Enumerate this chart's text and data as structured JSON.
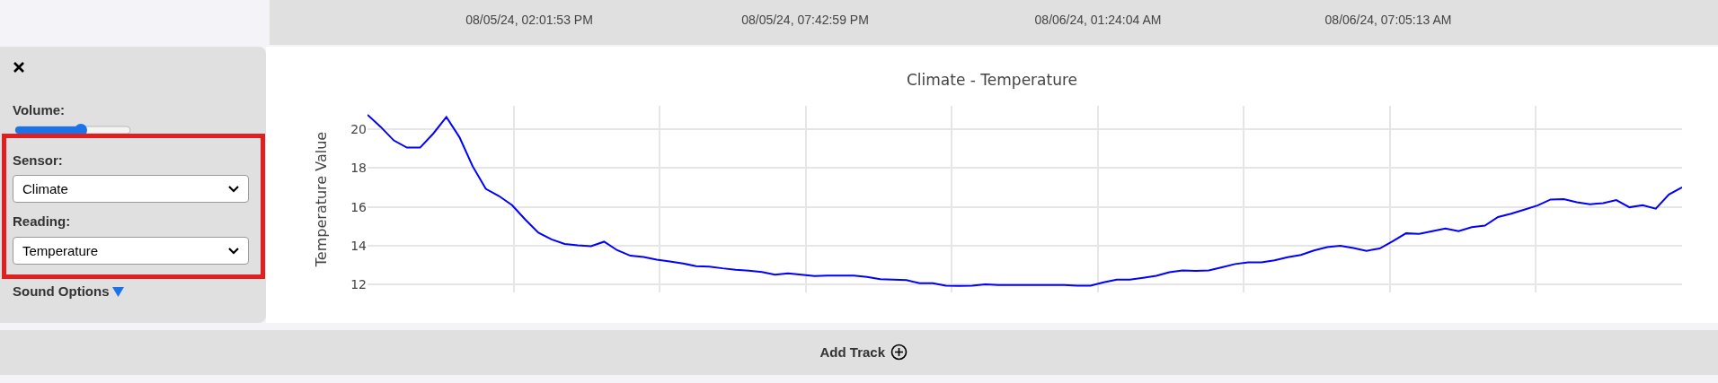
{
  "chart_data": {
    "type": "line",
    "title": "Climate - Temperature",
    "ylabel": "Temperature Value",
    "categories": [
      null,
      null,
      null,
      null,
      null,
      null,
      null,
      null,
      null,
      null,
      null,
      null,
      null,
      null,
      null,
      null,
      null,
      null,
      null,
      null,
      null,
      null,
      null,
      null,
      null,
      null,
      null,
      null,
      null,
      null,
      null,
      null,
      null,
      null,
      null,
      null,
      null,
      null,
      null,
      null,
      null,
      null,
      null,
      null,
      null,
      null,
      null,
      null,
      null,
      null,
      null,
      null,
      null,
      null,
      null,
      null,
      null,
      null,
      null,
      null,
      null,
      null,
      null,
      null,
      null,
      null,
      null,
      null,
      null,
      null,
      null,
      null,
      null,
      null,
      null,
      null,
      null,
      null,
      null,
      null,
      null,
      null,
      null,
      null,
      null,
      null,
      null,
      null,
      null,
      null,
      null,
      null,
      null,
      null,
      null,
      null,
      null,
      null,
      null,
      null,
      null
    ],
    "series": [
      {
        "color": "#0000ff",
        "values": [
          20.74,
          20.12,
          19.42,
          19.05,
          19.05,
          19.77,
          20.63,
          19.58,
          18.09,
          16.93,
          16.56,
          16.09,
          15.35,
          14.67,
          14.33,
          14.09,
          14.02,
          13.98,
          14.21,
          13.77,
          13.49,
          13.42,
          13.28,
          13.19,
          13.09,
          12.95,
          12.93,
          12.84,
          12.77,
          12.72,
          12.65,
          12.51,
          12.58,
          12.51,
          12.44,
          12.47,
          12.47,
          12.47,
          12.4,
          12.28,
          12.26,
          12.23,
          12.07,
          12.07,
          11.95,
          11.93,
          11.95,
          12.02,
          11.98,
          11.98,
          11.98,
          11.98,
          11.98,
          11.98,
          11.95,
          11.95,
          12.12,
          12.26,
          12.26,
          12.35,
          12.45,
          12.64,
          12.73,
          12.71,
          12.73,
          12.89,
          13.06,
          13.15,
          13.15,
          13.25,
          13.41,
          13.53,
          13.76,
          13.93,
          14.0,
          13.88,
          13.74,
          13.86,
          14.24,
          14.64,
          14.61,
          14.75,
          14.89,
          14.75,
          14.96,
          15.04,
          15.48,
          15.65,
          15.86,
          16.07,
          16.38,
          16.4,
          16.24,
          16.14,
          16.19,
          16.35,
          15.98,
          16.09,
          15.91,
          16.64,
          17.01
        ]
      }
    ],
    "ylim": [
      11.6,
      21.2
    ],
    "yticks": [
      12,
      14,
      16,
      18,
      20
    ],
    "grid": true,
    "tick_labels": "y",
    "marker": "none",
    "line_style": "solid",
    "annotations": [
      "08/05/24, 02:01:53 PM",
      "08/05/24, 07:42:59 PM",
      "08/06/24, 01:24:04 AM",
      "08/06/24, 07:05:13 AM",
      "Volume:",
      "Sensor:",
      "Climate",
      "Reading:",
      "Temperature",
      "Sound Options",
      "Add Track"
    ]
  }
}
